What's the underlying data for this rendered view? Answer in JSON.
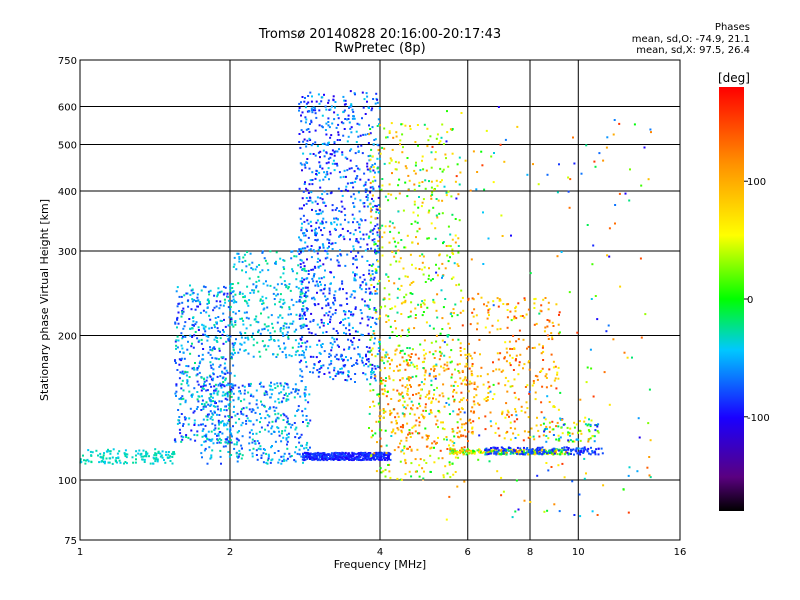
{
  "header": {
    "title_line1": "Tromsø 20140828 20:16:00-20:17:43",
    "title_line2": "RwPretec (8p)"
  },
  "stats": {
    "heading": "Phases",
    "line1": "mean, sd,O: -74.9, 21.1",
    "line2": "mean, sd,X: 97.5, 26.4"
  },
  "chart_data": {
    "type": "scatter",
    "xlabel": "Frequency [MHz]",
    "ylabel": "Stationary phase Virtual Height [km]",
    "xscale": "log",
    "yscale": "log",
    "xlim": [
      1,
      16
    ],
    "ylim": [
      75,
      750
    ],
    "xticks": [
      1,
      2,
      4,
      6,
      8,
      10,
      16
    ],
    "xtick_labels": [
      "1",
      "2",
      "4",
      "6",
      "8",
      "10",
      "16"
    ],
    "xgrid": [
      2,
      4,
      6,
      8,
      10
    ],
    "yticks": [
      75,
      100,
      200,
      300,
      400,
      500,
      600,
      750
    ],
    "ytick_labels": [
      "75",
      "100",
      "200",
      "300",
      "400",
      "500",
      "600",
      "750"
    ],
    "ygrid": [
      100,
      200,
      300,
      400,
      500,
      600
    ],
    "grid": true,
    "colorbar": {
      "label": "[deg]",
      "range": [
        -180,
        180
      ],
      "ticks": [
        100,
        0,
        -100
      ],
      "tick_labels": [
        "100",
        "0",
        "-100"
      ],
      "colormap": "rainbow: black-purple-blue-cyan-green-yellow-orange-red"
    },
    "clusters": [
      {
        "x": [
          1.0,
          1.55
        ],
        "y": [
          108,
          116
        ],
        "phase": [
          -45,
          -25
        ],
        "count": 140
      },
      {
        "x": [
          1.55,
          2.05
        ],
        "y": [
          120,
          255
        ],
        "phase": [
          -100,
          -20
        ],
        "count": 500
      },
      {
        "x": [
          1.75,
          2.9
        ],
        "y": [
          108,
          160
        ],
        "phase": [
          -90,
          -25
        ],
        "count": 420
      },
      {
        "x": [
          2.0,
          2.85
        ],
        "y": [
          180,
          300
        ],
        "phase": [
          -70,
          -20
        ],
        "count": 300
      },
      {
        "x": [
          2.75,
          4.0
        ],
        "y": [
          160,
          650
        ],
        "phase": [
          -110,
          -40
        ],
        "count": 1000
      },
      {
        "x": [
          2.8,
          4.2
        ],
        "y": [
          110,
          114
        ],
        "phase": [
          -105,
          -75
        ],
        "count": 420
      },
      {
        "x": [
          3.8,
          5.8
        ],
        "y": [
          100,
          560
        ],
        "phase": [
          -40,
          120
        ],
        "count": 650
      },
      {
        "x": [
          4.0,
          6.2
        ],
        "y": [
          115,
          185
        ],
        "phase": [
          60,
          150
        ],
        "count": 250
      },
      {
        "x": [
          5.5,
          9.5
        ],
        "y": [
          113,
          116
        ],
        "phase": [
          -40,
          130
        ],
        "count": 260
      },
      {
        "x": [
          5.8,
          9.2
        ],
        "y": [
          120,
          240
        ],
        "phase": [
          50,
          160
        ],
        "count": 300
      },
      {
        "x": [
          6.5,
          11.2
        ],
        "y": [
          113,
          117
        ],
        "phase": [
          -100,
          -70
        ],
        "count": 150
      },
      {
        "x": [
          8.5,
          11.0
        ],
        "y": [
          120,
          135
        ],
        "phase": [
          -100,
          110
        ],
        "count": 80
      },
      {
        "x": [
          5.0,
          14.0
        ],
        "y": [
          82,
          600
        ],
        "phase": [
          -110,
          160
        ],
        "count": 200
      }
    ]
  }
}
